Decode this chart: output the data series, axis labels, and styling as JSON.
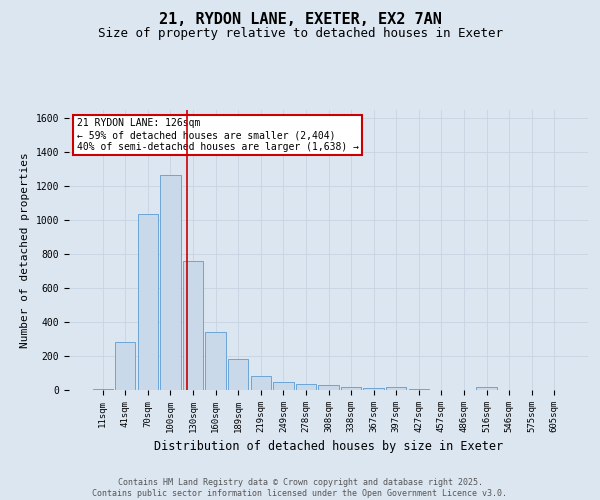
{
  "title_line1": "21, RYDON LANE, EXETER, EX2 7AN",
  "title_line2": "Size of property relative to detached houses in Exeter",
  "xlabel": "Distribution of detached houses by size in Exeter",
  "ylabel": "Number of detached properties",
  "bar_labels": [
    "11sqm",
    "41sqm",
    "70sqm",
    "100sqm",
    "130sqm",
    "160sqm",
    "189sqm",
    "219sqm",
    "249sqm",
    "278sqm",
    "308sqm",
    "338sqm",
    "367sqm",
    "397sqm",
    "427sqm",
    "457sqm",
    "486sqm",
    "516sqm",
    "546sqm",
    "575sqm",
    "605sqm"
  ],
  "bar_heights": [
    5,
    280,
    1040,
    1265,
    760,
    340,
    185,
    80,
    45,
    35,
    30,
    20,
    10,
    15,
    5,
    2,
    2,
    15,
    2,
    2,
    2
  ],
  "bar_color": "#c9d9ea",
  "bar_edge_color": "#5b9bd5",
  "vline_x": 3.75,
  "vline_color": "#cc0000",
  "annotation_text": "21 RYDON LANE: 126sqm\n← 59% of detached houses are smaller (2,404)\n40% of semi-detached houses are larger (1,638) →",
  "annotation_box_color": "#cc0000",
  "annotation_bg": "#ffffff",
  "ylim": [
    0,
    1650
  ],
  "yticks": [
    0,
    200,
    400,
    600,
    800,
    1000,
    1200,
    1400,
    1600
  ],
  "grid_color": "#c8d4e3",
  "plot_bg_color": "#dce6f1",
  "fig_bg_color": "#dce6f1",
  "footer_text": "Contains HM Land Registry data © Crown copyright and database right 2025.\nContains public sector information licensed under the Open Government Licence v3.0.",
  "title_fontsize": 11,
  "subtitle_fontsize": 9,
  "tick_fontsize": 6.5,
  "ylabel_fontsize": 8,
  "xlabel_fontsize": 8.5,
  "footer_fontsize": 6,
  "annotation_fontsize": 7
}
